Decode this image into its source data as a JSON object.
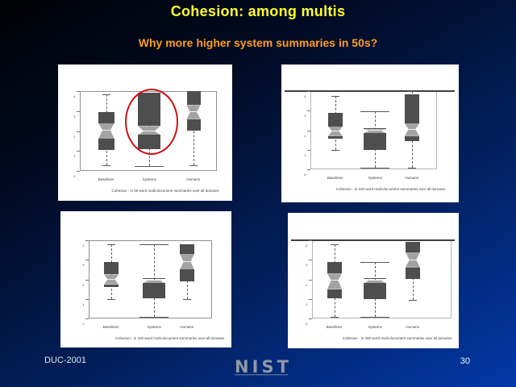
{
  "slide": {
    "title": "Cohesion: among multis",
    "subtitle": "Why more higher system summaries in 50s?",
    "footer": {
      "left": "DUC-2001",
      "logo": "NIST",
      "page": "30"
    }
  },
  "colors": {
    "title_yellow": "#ffff29",
    "subtitle_orange": "#ff9e1e",
    "background_top": "#000103",
    "background_bottom": "#0338a8",
    "panel_white": "#ffffff",
    "box_fill": "#4e4e4e",
    "notch_fill": "#a3a3a3",
    "median_line": "#f2f2f2",
    "highlight_red": "#cc1111",
    "nist_gray": "#9099a4"
  },
  "chart_data": [
    {
      "id": "top-left",
      "type": "boxplot",
      "caption": "Cohesion - in 50 word multi-document summaries over all domains",
      "categories": [
        "Baselines",
        "Systems",
        "Humans"
      ],
      "xlabel": "",
      "ylabel": "",
      "ylim": [
        0,
        4
      ],
      "yticks": [
        "4",
        "3",
        "2",
        "1",
        "0"
      ],
      "annotation": "red ellipse highlighting the Systems box",
      "series": [
        {
          "name": "Baselines",
          "whisker_top": 3.85,
          "box_top": 2.95,
          "notch_top": 2.4,
          "median": 2.05,
          "notch_bottom": 1.6,
          "box_bottom": 1.05,
          "whisker_bottom": 0.3
        },
        {
          "name": "Systems",
          "whisker_top": 3.9,
          "box_top": 3.9,
          "notch_top": 2.25,
          "median": 2.0,
          "notch_bottom": 1.8,
          "box_bottom": 1.1,
          "whisker_bottom": 0.25
        },
        {
          "name": "Humans",
          "whisker_top": 4.0,
          "box_top": 4.0,
          "notch_top": 3.3,
          "median": 2.95,
          "notch_bottom": 2.6,
          "box_bottom": 2.0,
          "whisker_bottom": 0.3
        }
      ]
    },
    {
      "id": "top-right",
      "type": "boxplot",
      "caption": "Cohesion - in 100 word multi-document summaries over all domains",
      "categories": [
        "Baselines",
        "Systems",
        "Humans"
      ],
      "xlabel": "",
      "ylabel": "",
      "ylim": [
        0,
        4
      ],
      "yticks": [
        "4",
        "3",
        "2",
        "1",
        "0"
      ],
      "annotation": "",
      "series": [
        {
          "name": "Baselines",
          "whisker_top": 3.75,
          "box_top": 2.9,
          "notch_top": 2.2,
          "median": 1.95,
          "notch_bottom": 1.7,
          "box_bottom": 1.55,
          "whisker_bottom": 1.0
        },
        {
          "name": "Systems",
          "whisker_top": 2.95,
          "box_top": 2.1,
          "notch_top": 2.05,
          "median": 1.98,
          "notch_bottom": 1.85,
          "box_bottom": 1.0,
          "whisker_bottom": 0.1
        },
        {
          "name": "Humans",
          "whisker_top": 4.0,
          "box_top": 3.85,
          "notch_top": 2.35,
          "median": 2.05,
          "notch_bottom": 1.7,
          "box_bottom": 1.45,
          "whisker_bottom": 0.1
        }
      ]
    },
    {
      "id": "bottom-left",
      "type": "boxplot",
      "caption": "Cohesion - in 200 word multi-document summaries over all domains",
      "categories": [
        "Baselines",
        "Systems",
        "Humans"
      ],
      "xlabel": "",
      "ylabel": "",
      "ylim": [
        0,
        4
      ],
      "yticks": [
        "4",
        "3",
        "2",
        "1",
        "0"
      ],
      "annotation": "",
      "series": [
        {
          "name": "Baselines",
          "whisker_top": 3.8,
          "box_top": 2.9,
          "notch_top": 2.25,
          "median": 2.0,
          "notch_bottom": 1.75,
          "box_bottom": 1.6,
          "whisker_bottom": 1.0
        },
        {
          "name": "Systems",
          "whisker_top": 3.8,
          "box_top": 2.05,
          "notch_top": 2.0,
          "median": 1.95,
          "notch_bottom": 1.8,
          "box_bottom": 1.05,
          "whisker_bottom": 0.1
        },
        {
          "name": "Humans",
          "whisker_top": 3.8,
          "box_top": 3.8,
          "notch_top": 3.3,
          "median": 2.9,
          "notch_bottom": 2.5,
          "box_bottom": 1.9,
          "whisker_bottom": 1.0
        }
      ]
    },
    {
      "id": "bottom-right",
      "type": "boxplot",
      "caption": "Cohesion - in 400 word multi-document summaries over all domains",
      "categories": [
        "Baselines",
        "Systems",
        "Humans"
      ],
      "xlabel": "",
      "ylabel": "",
      "ylim": [
        0,
        4
      ],
      "yticks": [
        "4",
        "3",
        "2",
        "1",
        "0"
      ],
      "annotation": "",
      "series": [
        {
          "name": "Baselines",
          "whisker_top": 3.8,
          "box_top": 2.9,
          "notch_top": 2.3,
          "median": 1.95,
          "notch_bottom": 1.5,
          "box_bottom": 1.05,
          "whisker_bottom": 0.1
        },
        {
          "name": "Systems",
          "whisker_top": 2.9,
          "box_top": 2.05,
          "notch_top": 2.0,
          "median": 1.95,
          "notch_bottom": 1.8,
          "box_bottom": 1.0,
          "whisker_bottom": 0.1
        },
        {
          "name": "Humans",
          "whisker_top": 3.9,
          "box_top": 3.9,
          "notch_top": 3.4,
          "median": 3.0,
          "notch_bottom": 2.6,
          "box_bottom": 2.0,
          "whisker_bottom": 0.95
        }
      ]
    }
  ]
}
